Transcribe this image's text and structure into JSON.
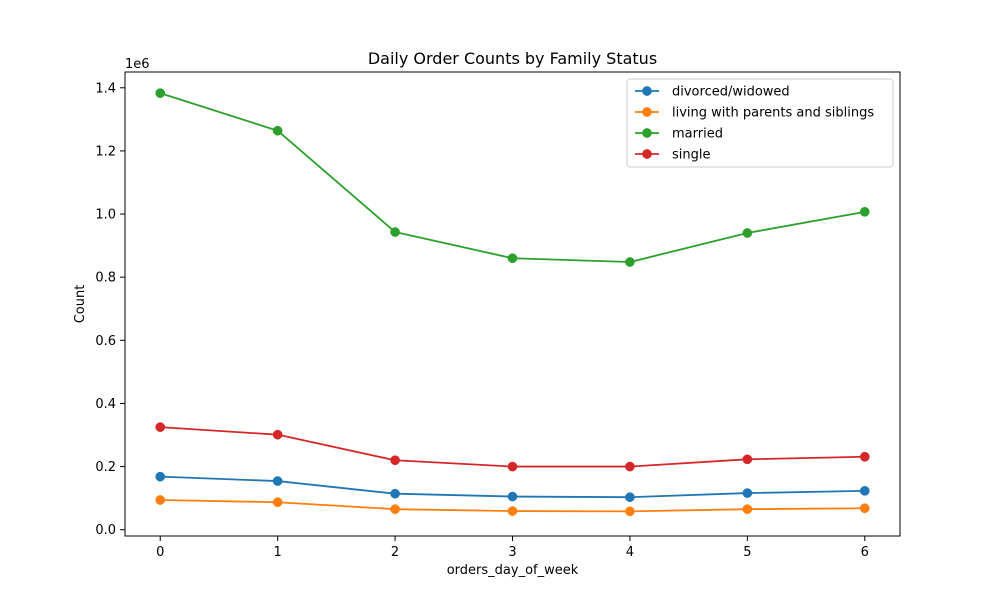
{
  "chart_data": {
    "type": "line",
    "title": "Daily Order Counts by Family Status",
    "xlabel": "orders_day_of_week",
    "ylabel": "Count",
    "y_scale_label": "1e6",
    "x": [
      0,
      1,
      2,
      3,
      4,
      5,
      6
    ],
    "x_tick_labels": [
      "0",
      "1",
      "2",
      "3",
      "4",
      "5",
      "6"
    ],
    "y_ticks": [
      0.0,
      0.2,
      0.4,
      0.6,
      0.8,
      1.0,
      1.2,
      1.4
    ],
    "y_tick_labels": [
      "0.0",
      "0.2",
      "0.4",
      "0.6",
      "0.8",
      "1.0",
      "1.2",
      "1.4"
    ],
    "xlim": [
      -0.3,
      6.3
    ],
    "ylim": [
      -0.02,
      1.45
    ],
    "grid": false,
    "legend_position": "top-right",
    "series": [
      {
        "name": "divorced/widowed",
        "color": "#1f77b4",
        "values": [
          0.168,
          0.154,
          0.114,
          0.105,
          0.103,
          0.116,
          0.123
        ]
      },
      {
        "name": "living with parents and siblings",
        "color": "#ff7f0e",
        "values": [
          0.094,
          0.087,
          0.065,
          0.059,
          0.058,
          0.065,
          0.068
        ]
      },
      {
        "name": "married",
        "color": "#2ca02c",
        "values": [
          1.383,
          1.264,
          0.943,
          0.86,
          0.848,
          0.94,
          1.007
        ]
      },
      {
        "name": "single",
        "color": "#d62728",
        "values": [
          0.325,
          0.301,
          0.22,
          0.2,
          0.2,
          0.223,
          0.231
        ]
      }
    ]
  }
}
